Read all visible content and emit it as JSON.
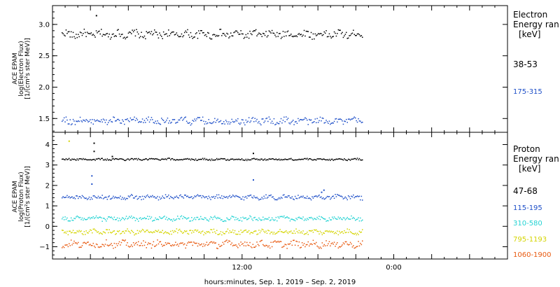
{
  "chart_data": [
    {
      "type": "scatter",
      "ylabel": [
        "ACE EPAM",
        "log(Electron Flux)",
        "[1/(cm²s ster MeV)]"
      ],
      "ylim": [
        1.28,
        3.3
      ],
      "yticks": [
        1.5,
        2.0,
        2.5,
        3.0
      ],
      "ytick_labels": [
        "1.5",
        "2.0",
        "2.5",
        "3.0"
      ],
      "legend_title": [
        "Electron",
        "Energy ran",
        "[keV]"
      ],
      "series": [
        {
          "name": "38-53",
          "color": "#000000",
          "level": 2.85,
          "amplitude": 0.07,
          "spikes": [
            [
              0.095,
              3.15
            ]
          ]
        },
        {
          "name": "175-315",
          "color": "#1e4fc8",
          "level": 1.47,
          "amplitude": 0.06,
          "spikes": []
        }
      ]
    },
    {
      "type": "scatter",
      "ylabel": [
        "ACE EPAM",
        "log(Proton Flux)",
        "[1/(cm²s ster MeV)]"
      ],
      "ylim": [
        -1.6,
        4.6
      ],
      "yticks": [
        -1,
        0,
        1,
        2,
        3,
        4
      ],
      "ytick_labels": [
        "−1",
        "0",
        "1",
        "2",
        "3",
        "4"
      ],
      "legend_title": [
        "Proton",
        "Energy ran",
        "[keV]"
      ],
      "series": [
        {
          "name": "47-68",
          "color": "#000000",
          "level": 3.3,
          "amplitude": 0.05,
          "spikes": [
            [
              0.09,
              4.1
            ],
            [
              0.09,
              3.7
            ],
            [
              0.44,
              3.6
            ],
            [
              0.13,
              3.45
            ]
          ]
        },
        {
          "name": "115-195",
          "color": "#1e4fc8",
          "level": 1.45,
          "amplitude": 0.12,
          "spikes": [
            [
              0.085,
              2.5
            ],
            [
              0.085,
              2.1
            ],
            [
              0.44,
              2.3
            ],
            [
              0.595,
              1.8
            ],
            [
              0.59,
              1.7
            ]
          ]
        },
        {
          "name": "310-580",
          "color": "#22d3d3",
          "level": 0.4,
          "amplitude": 0.12,
          "spikes": []
        },
        {
          "name": "795-1193",
          "color": "#d4d400",
          "level": -0.25,
          "amplitude": 0.13,
          "spikes": [
            [
              0.035,
              4.2
            ]
          ]
        },
        {
          "name": "1060-1900",
          "color": "#e85a10",
          "level": -0.85,
          "amplitude": 0.18,
          "spikes": []
        }
      ]
    }
  ],
  "x_axis": {
    "tick_labels": [
      "12:00",
      "0:00"
    ],
    "xlabel": "hours:minutes, Sep.  1, 2019 – Sep.  2, 2019"
  }
}
